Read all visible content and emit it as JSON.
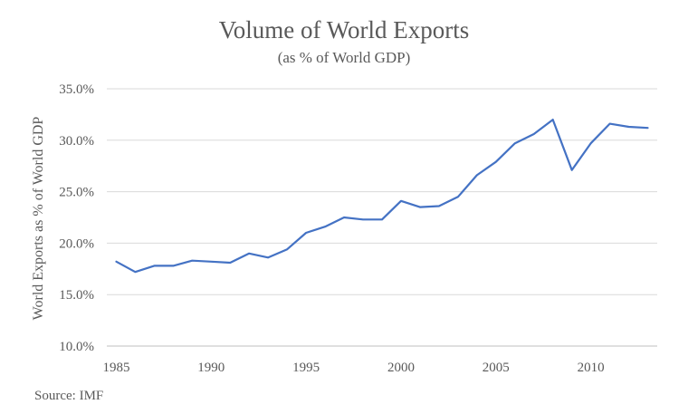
{
  "chart_data": {
    "type": "line",
    "title": "Volume of World Exports",
    "subtitle": "(as % of World GDP)",
    "xlabel": "",
    "ylabel": "World Exports as % of World GDP",
    "source": "Source: IMF",
    "ylim": [
      10,
      35
    ],
    "xlim": [
      1985,
      2013
    ],
    "y_ticks": [
      10,
      15,
      20,
      25,
      30,
      35
    ],
    "y_tick_labels": [
      "10.0%",
      "15.0%",
      "20.0%",
      "25.0%",
      "30.0%",
      "35.0%"
    ],
    "x_ticks": [
      1985,
      1990,
      1995,
      2000,
      2005,
      2010
    ],
    "x_tick_labels": [
      "1985",
      "1990",
      "1995",
      "2000",
      "2005",
      "2010"
    ],
    "grid": true,
    "legend": "none",
    "colors": {
      "line": "#4472c4",
      "grid": "#d9d9d9",
      "axis": "#bfbfbf",
      "text": "#595959"
    },
    "series": [
      {
        "x": [
          1985,
          1986,
          1987,
          1988,
          1989,
          1990,
          1991,
          1992,
          1993,
          1994,
          1995,
          1996,
          1997,
          1998,
          1999,
          2000,
          2001,
          2002,
          2003,
          2004,
          2005,
          2006,
          2007,
          2008,
          2009,
          2010,
          2011,
          2012,
          2013
        ],
        "values": [
          18.2,
          17.2,
          17.8,
          17.8,
          18.3,
          18.2,
          18.1,
          19.0,
          18.6,
          19.4,
          21.0,
          21.6,
          22.5,
          22.3,
          22.3,
          24.1,
          23.5,
          23.6,
          24.5,
          26.6,
          27.9,
          29.7,
          30.6,
          32.0,
          27.1,
          29.7,
          31.6,
          31.3,
          31.2
        ]
      }
    ]
  }
}
